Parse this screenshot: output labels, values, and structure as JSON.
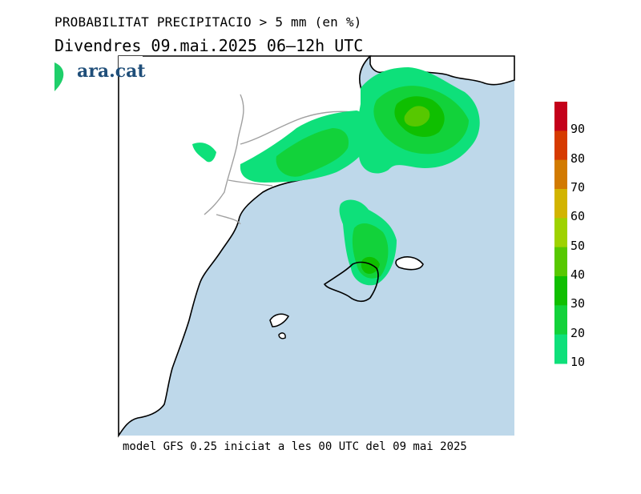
{
  "header": {
    "title": "PROBABILITAT PRECIPITACIO > 5 mm (en %)",
    "subtitle": "Divendres  09.mai.2025 06–12h UTC"
  },
  "logo": {
    "text": "ara.cat",
    "icon": "leaf-icon",
    "color": "#1f4e79"
  },
  "footer": {
    "text": "model GFS 0.25 iniciat a les 00 UTC del 09 mai 2025"
  },
  "legend": {
    "labels": [
      "90",
      "80",
      "70",
      "60",
      "50",
      "40",
      "30",
      "20",
      "10"
    ],
    "colors": [
      "#c4001a",
      "#d63a00",
      "#d27a00",
      "#d2b400",
      "#9ed200",
      "#57c800",
      "#0fbf00",
      "#12d23a",
      "#0ee07a"
    ]
  },
  "map": {
    "sea_color": "#bed8ea",
    "land_color": "#ffffff"
  }
}
